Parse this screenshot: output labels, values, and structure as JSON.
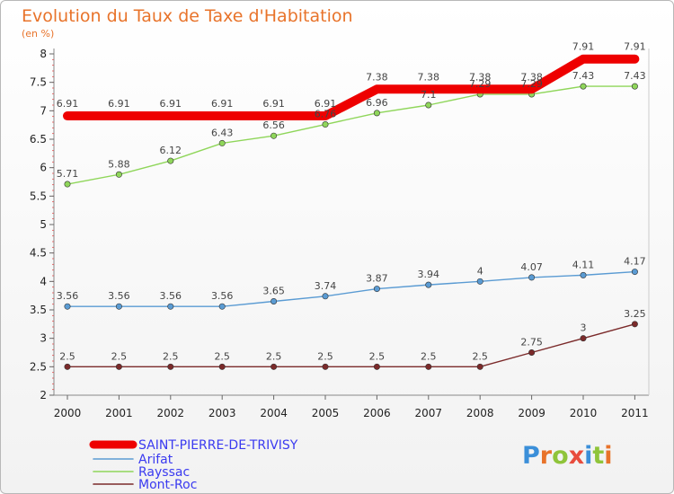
{
  "chart_data": {
    "type": "line",
    "title": "Evolution du Taux de Taxe d'Habitation",
    "unit_label": "(en %)",
    "x": [
      "2000",
      "2001",
      "2002",
      "2003",
      "2004",
      "2005",
      "2006",
      "2007",
      "2008",
      "2009",
      "2010",
      "2011"
    ],
    "y_ticks": [
      "2",
      "2.5",
      "3",
      "3.5",
      "4",
      "4.5",
      "5",
      "5.5",
      "6",
      "6.5",
      "7",
      "7.5",
      "8"
    ],
    "ylim": [
      2,
      8
    ],
    "grid": false,
    "legend_position": "bottom-left",
    "series": [
      {
        "name": "SAINT-PIERRE-DE-TRIVISY",
        "color": "#ee0000",
        "values": [
          6.91,
          6.91,
          6.91,
          6.91,
          6.91,
          6.91,
          7.38,
          7.38,
          7.38,
          7.38,
          7.91,
          7.91
        ],
        "labels": [
          "6.91",
          "6.91",
          "6.91",
          "6.91",
          "6.91",
          "6.91",
          "7.38",
          "7.38",
          "7.38",
          "7.38",
          "7.91",
          "7.91"
        ]
      },
      {
        "name": "Arifat",
        "color": "#5a9bd3",
        "values": [
          3.56,
          3.56,
          3.56,
          3.56,
          3.65,
          3.74,
          3.87,
          3.94,
          4,
          4.07,
          4.11,
          4.17
        ],
        "labels": [
          "3.56",
          "3.56",
          "3.56",
          "3.56",
          "3.65",
          "3.74",
          "3.87",
          "3.94",
          "4",
          "4.07",
          "4.11",
          "4.17"
        ]
      },
      {
        "name": "Rayssac",
        "color": "#8fd65a",
        "values": [
          5.71,
          5.88,
          6.12,
          6.43,
          6.56,
          6.76,
          6.96,
          7.1,
          7.29,
          7.29,
          7.43,
          7.43
        ],
        "labels": [
          "5.71",
          "5.88",
          "6.12",
          "6.43",
          "6.56",
          "6.76",
          "6.96",
          "7.1",
          "7.29",
          "7.29",
          "7.43",
          "7.43"
        ]
      },
      {
        "name": "Mont-Roc",
        "color": "#7b2a2a",
        "values": [
          2.5,
          2.5,
          2.5,
          2.5,
          2.5,
          2.5,
          2.5,
          2.5,
          2.5,
          2.75,
          3,
          3.25
        ],
        "labels": [
          "2.5",
          "2.5",
          "2.5",
          "2.5",
          "2.5",
          "2.5",
          "2.5",
          "2.5",
          "2.5",
          "2.75",
          "3",
          "3.25"
        ]
      }
    ]
  },
  "logo": {
    "text": "Proxiti",
    "letter_colors": [
      "#3b8fd9",
      "#e8732a",
      "#8fc43a",
      "#e84c3d",
      "#3b8fd9",
      "#8fc43a",
      "#e8732a"
    ]
  }
}
